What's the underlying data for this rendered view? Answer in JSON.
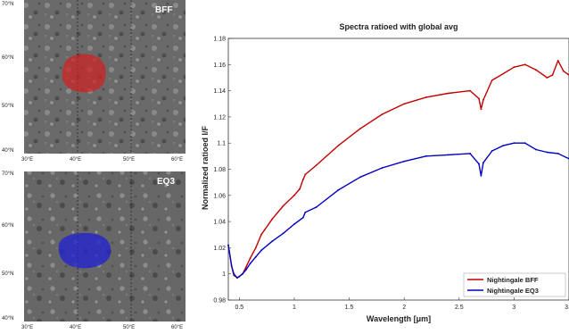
{
  "maps": [
    {
      "label": "BFF",
      "region_color": "#d42020",
      "lat_ticks": [
        "70°N",
        "60°N",
        "50°N",
        "40°N"
      ],
      "lon_ticks": [
        "30°E",
        "40°E",
        "50°E",
        "60°E"
      ]
    },
    {
      "label": "EQ3",
      "region_color": "#2020d4",
      "lat_ticks": [
        "70°N",
        "60°N",
        "50°N",
        "40°N"
      ],
      "lon_ticks": [
        "30°E",
        "40°E",
        "50°E",
        "60°E"
      ]
    }
  ],
  "chart_data": {
    "type": "line",
    "title": "Spectra ratioed with global avg",
    "xlabel": "Wavelength [μm]",
    "ylabel": "Normalized ratioed I/F",
    "xlim": [
      0.4,
      3.5
    ],
    "ylim": [
      0.98,
      1.18
    ],
    "xticks": [
      "0.5",
      "1",
      "1.5",
      "2",
      "2.5",
      "3",
      "3.5"
    ],
    "yticks": [
      "0.98",
      "1",
      "1.02",
      "1.04",
      "1.06",
      "1.08",
      "1.1",
      "1.12",
      "1.14",
      "1.16",
      "1.18"
    ],
    "legend_position": "bottom-right",
    "grid": false,
    "series": [
      {
        "name": "Nightingale BFF",
        "color": "#c00000",
        "x": [
          0.4,
          0.43,
          0.45,
          0.48,
          0.5,
          0.53,
          0.56,
          0.6,
          0.65,
          0.7,
          0.8,
          0.9,
          1.0,
          1.05,
          1.08,
          1.1,
          1.2,
          1.4,
          1.6,
          1.8,
          2.0,
          2.2,
          2.4,
          2.6,
          2.68,
          2.7,
          2.72,
          2.8,
          2.9,
          3.0,
          3.1,
          3.2,
          3.3,
          3.35,
          3.4,
          3.45,
          3.5
        ],
        "y": [
          1.022,
          1.006,
          0.999,
          0.997,
          0.998,
          1.0,
          1.005,
          1.012,
          1.02,
          1.03,
          1.042,
          1.052,
          1.06,
          1.065,
          1.072,
          1.076,
          1.083,
          1.098,
          1.111,
          1.122,
          1.13,
          1.135,
          1.138,
          1.14,
          1.134,
          1.126,
          1.133,
          1.148,
          1.153,
          1.158,
          1.16,
          1.156,
          1.15,
          1.152,
          1.163,
          1.155,
          1.152
        ]
      },
      {
        "name": "Nightingale EQ3",
        "color": "#0000c0",
        "x": [
          0.4,
          0.43,
          0.45,
          0.48,
          0.5,
          0.53,
          0.56,
          0.6,
          0.65,
          0.7,
          0.8,
          0.9,
          1.0,
          1.08,
          1.1,
          1.2,
          1.4,
          1.6,
          1.8,
          2.0,
          2.2,
          2.4,
          2.6,
          2.68,
          2.7,
          2.72,
          2.8,
          2.9,
          3.0,
          3.1,
          3.2,
          3.3,
          3.4,
          3.5
        ],
        "y": [
          1.022,
          1.006,
          1.0,
          0.997,
          0.998,
          1.0,
          1.003,
          1.008,
          1.013,
          1.018,
          1.025,
          1.031,
          1.038,
          1.043,
          1.047,
          1.051,
          1.064,
          1.074,
          1.081,
          1.086,
          1.09,
          1.091,
          1.092,
          1.084,
          1.075,
          1.085,
          1.094,
          1.098,
          1.1,
          1.1,
          1.095,
          1.093,
          1.092,
          1.088
        ]
      }
    ]
  }
}
